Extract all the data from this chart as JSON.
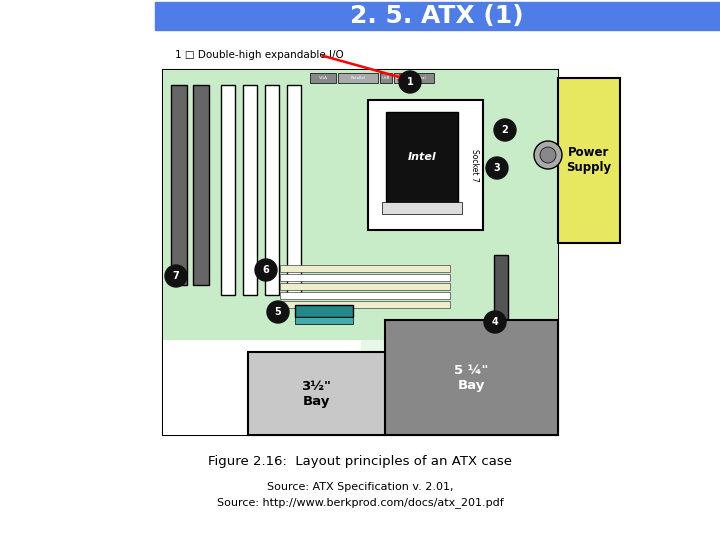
{
  "title": "2. 5. ATX (1)",
  "title_bg": "#4f7de8",
  "title_color": "white",
  "title_fontsize": 18,
  "fig_bg": "white",
  "annotation_label": "1 □ Double-high expandable I/O",
  "figure_caption": "Figure 2.16:  Layout principles of an ATX case",
  "source_line1": "Source: ATX Specification v. 2.01,",
  "source_line2": "Source: http://www.berkprod.com/docs/atx_201.pdf",
  "board_bg": "#e8f8e8",
  "green_bg": "#c8ecc8",
  "white_lower": "#ffffff",
  "power_supply_color": "#e8e860",
  "gray_bay_color": "#888888",
  "light_gray_color": "#c8c8c8",
  "dark_slot_color": "#666666",
  "white_slot_color": "#ffffff",
  "numbered_circle_color": "#111111"
}
